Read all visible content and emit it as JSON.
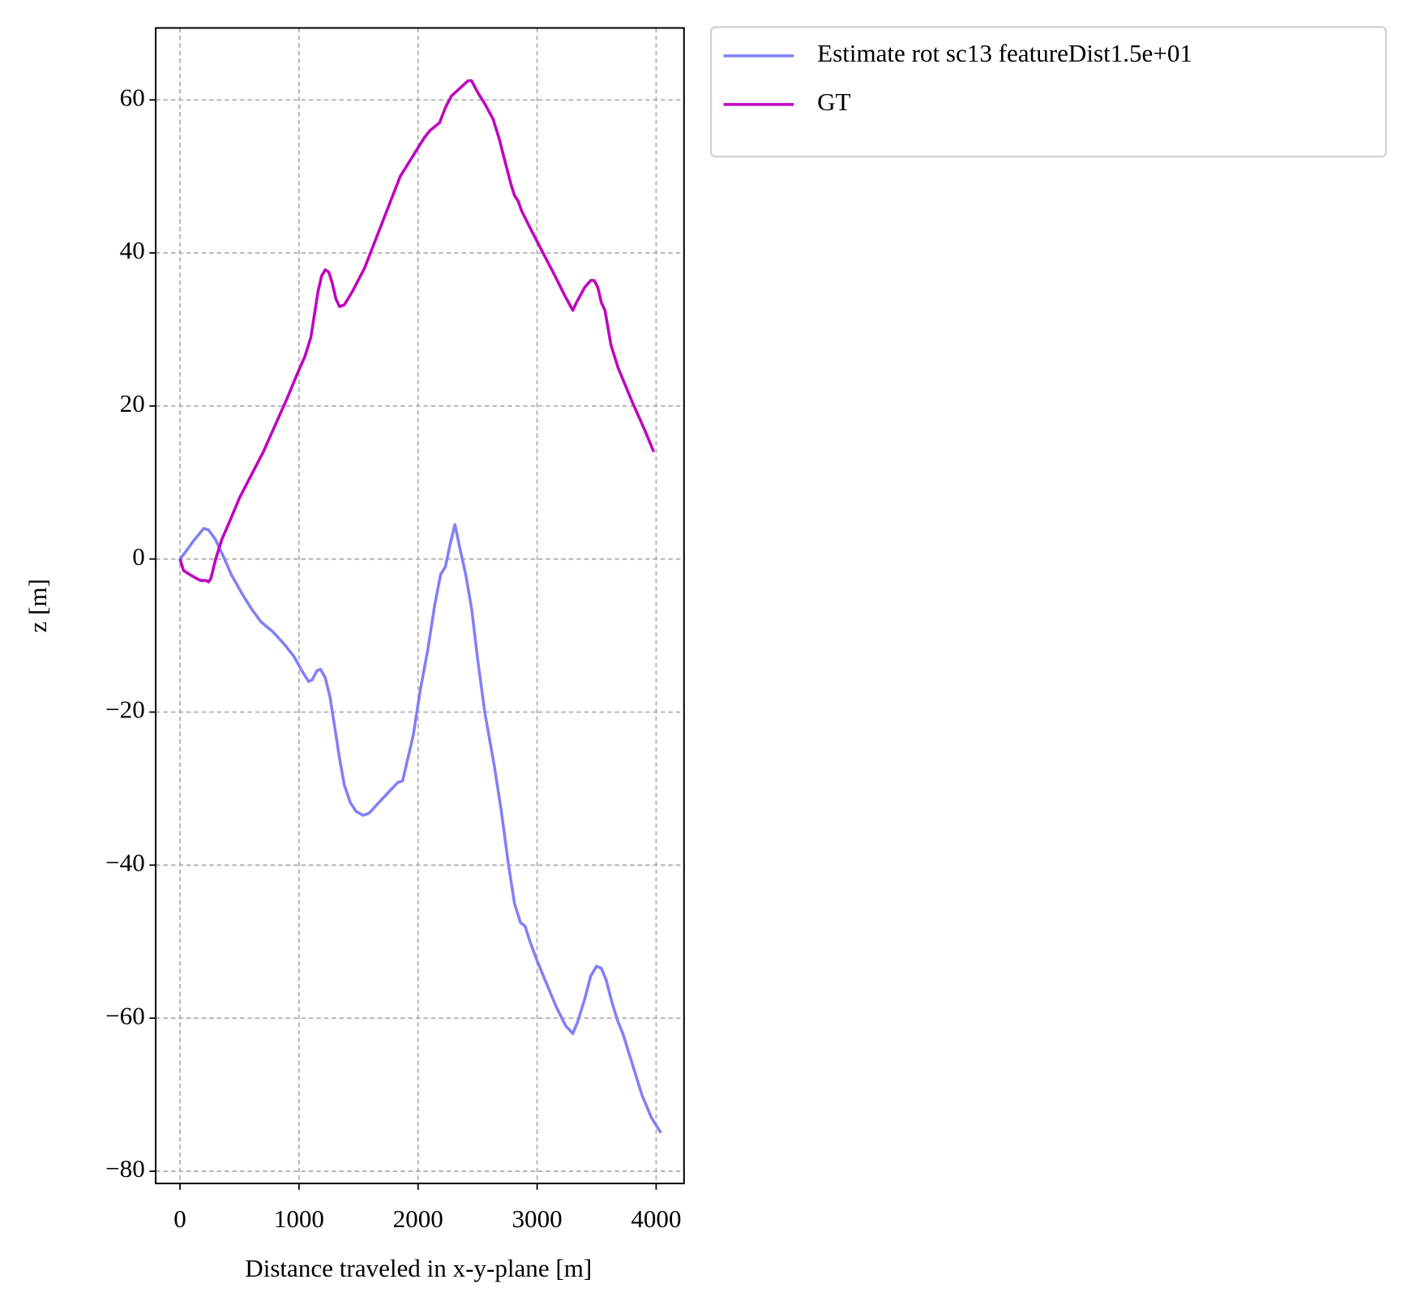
{
  "chart_data": {
    "type": "line",
    "x_label": "Distance traveled in x-y-plane [m]",
    "y_label": "z [m]",
    "xlim": [
      -204,
      4234
    ],
    "ylim": [
      -81.6,
      69.4
    ],
    "xticks": [
      0,
      1000,
      2000,
      3000,
      4000
    ],
    "yticks": [
      {
        "value": -80,
        "label": "−80"
      },
      {
        "value": -60,
        "label": "−60"
      },
      {
        "value": -40,
        "label": "−40"
      },
      {
        "value": -20,
        "label": "−20"
      },
      0,
      20,
      40,
      60
    ],
    "grid": true,
    "legend": "outside upper right",
    "series": [
      {
        "name": "Estimate rot sc13 featureDist1.5e+01",
        "color": "#8080f8",
        "x": [
          0,
          50,
          120,
          200,
          240,
          300,
          360,
          430,
          520,
          600,
          680,
          780,
          880,
          960,
          1020,
          1080,
          1110,
          1150,
          1180,
          1220,
          1260,
          1300,
          1340,
          1380,
          1430,
          1480,
          1540,
          1590,
          1660,
          1750,
          1830,
          1870,
          1900,
          1960,
          2020,
          2080,
          2140,
          2190,
          2230,
          2270,
          2310,
          2350,
          2400,
          2450,
          2500,
          2560,
          2640,
          2700,
          2760,
          2810,
          2860,
          2900,
          2940,
          3000,
          3080,
          3160,
          3240,
          3300,
          3340,
          3400,
          3450,
          3500,
          3540,
          3580,
          3630,
          3680,
          3720,
          3800,
          3880,
          3960,
          4000,
          4040
        ],
        "values": [
          0,
          1,
          2.5,
          4,
          3.8,
          2.5,
          0.5,
          -2,
          -4.5,
          -6.5,
          -8.2,
          -9.5,
          -11.2,
          -12.8,
          -14.5,
          -16,
          -15.8,
          -14.6,
          -14.4,
          -15.5,
          -18,
          -22,
          -26,
          -29.5,
          -31.8,
          -33,
          -33.5,
          -33.2,
          -32,
          -30.5,
          -29.2,
          -29,
          -27,
          -23,
          -17,
          -12,
          -6,
          -2,
          -1,
          2,
          4.5,
          1.5,
          -2,
          -6.5,
          -13,
          -20,
          -27,
          -33,
          -40,
          -45,
          -47.5,
          -48,
          -50,
          -52.5,
          -55.5,
          -58.5,
          -61,
          -62,
          -60.5,
          -57.5,
          -54.5,
          -53.2,
          -53.5,
          -55,
          -58,
          -60.5,
          -62,
          -66,
          -70,
          -73,
          -74,
          -75
        ]
      },
      {
        "name": "GT",
        "color": "#bf00bf",
        "x": [
          0,
          30,
          100,
          170,
          220,
          240,
          260,
          300,
          350,
          420,
          500,
          600,
          700,
          800,
          900,
          980,
          1050,
          1100,
          1130,
          1160,
          1190,
          1220,
          1250,
          1280,
          1310,
          1340,
          1380,
          1450,
          1550,
          1650,
          1750,
          1800,
          1850,
          1950,
          2050,
          2100,
          2180,
          2230,
          2280,
          2350,
          2420,
          2450,
          2500,
          2560,
          2630,
          2680,
          2730,
          2780,
          2810,
          2840,
          2870,
          2950,
          3050,
          3150,
          3230,
          3300,
          3330,
          3400,
          3450,
          3480,
          3510,
          3540,
          3570,
          3620,
          3680,
          3800,
          3900,
          3980
        ],
        "values": [
          0,
          -1.5,
          -2.2,
          -2.8,
          -2.8,
          -3,
          -2.5,
          0,
          2.5,
          5,
          8,
          11,
          14,
          17.5,
          21,
          24,
          26.5,
          29,
          32,
          35,
          37,
          37.8,
          37.5,
          36,
          34,
          33,
          33.2,
          35,
          38,
          42,
          46,
          48,
          50,
          52.5,
          55,
          56,
          57,
          59,
          60.5,
          61.5,
          62.5,
          62.5,
          61,
          59.5,
          57.5,
          55,
          52,
          49,
          47.5,
          46.8,
          45.5,
          43,
          40,
          37,
          34.5,
          32.5,
          33.5,
          35.5,
          36.4,
          36.4,
          35.5,
          33.5,
          32.5,
          28,
          25,
          20.5,
          17,
          14
        ]
      }
    ]
  }
}
